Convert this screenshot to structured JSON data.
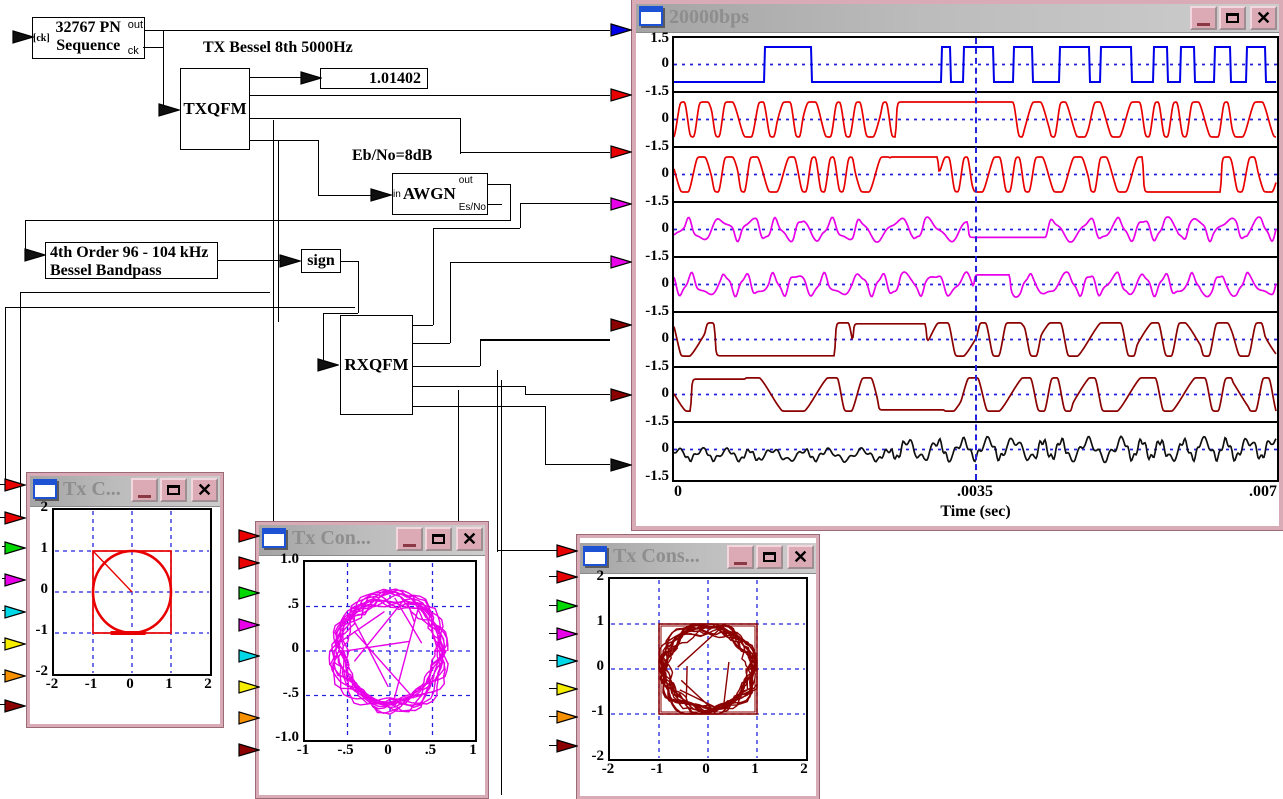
{
  "diagram": {
    "pn_block": {
      "title_line1": "32767 PN",
      "title_line2": "Sequence",
      "port_out": "out",
      "port_ck": "ck",
      "external_input_label": "[ck]"
    },
    "tx_filter_label": "TX Bessel 8th 5000Hz",
    "txqfm_label": "TXQFM",
    "final_value": "1.01402",
    "ebno_label": "Eb/No=8dB",
    "awgn_block": {
      "port_in": "in",
      "title": "AWGN",
      "port_out": "out",
      "port_esno": "Es/No"
    },
    "bessel_block": {
      "line1": "4th Order 96 - 104 kHz",
      "line2": "Bessel Bandpass"
    },
    "sign_label": "sign",
    "rxqfm_label": "RXQFM"
  },
  "colors": {
    "block_fill": "#00E4EE",
    "window_frame": "#D9ABB6",
    "titlebar_text": "#8E8E8E",
    "grid_blue": "#2222DD",
    "connector": {
      "red": "#E80000",
      "green": "#00D800",
      "magenta": "#E800E8",
      "cyan": "#00D8E8",
      "yellow": "#F6EE00",
      "orange": "#F69000",
      "darkred": "#8B0000",
      "blue": "#0000E8",
      "black": "#101010"
    }
  },
  "window_buttons": {
    "close_glyph": "✕"
  },
  "scope_window": {
    "title": "20000bps",
    "x_axis": {
      "label": "Time (sec)",
      "ticks": [
        "0",
        ".0035",
        ".007"
      ]
    },
    "y_axis": {
      "top": "1.5",
      "zero": "0",
      "bottom": "-1.5"
    },
    "traces": [
      {
        "color_name": "blue",
        "kind": "digital",
        "seed": 7
      },
      {
        "color_name": "red",
        "kind": "fm",
        "seed": 11
      },
      {
        "color_name": "red",
        "kind": "fm",
        "seed": 23
      },
      {
        "color_name": "magenta",
        "kind": "fm",
        "seed": 31
      },
      {
        "color_name": "magenta",
        "kind": "fm",
        "seed": 43
      },
      {
        "color_name": "darkred",
        "kind": "fm",
        "seed": 53
      },
      {
        "color_name": "darkred",
        "kind": "fm",
        "seed": 61
      },
      {
        "color_name": "black",
        "kind": "noisy",
        "seed": 71
      }
    ]
  },
  "constellation_windows": [
    {
      "title": "Tx C...",
      "color_name": "red",
      "y_ticks": [
        "2",
        "1",
        "0",
        "-1",
        "-2"
      ],
      "y_tick_values": [
        2,
        1,
        0,
        -1,
        -2
      ],
      "x_ticks": [
        "-2",
        "-1",
        "0",
        "1",
        "2"
      ],
      "x_tick_values": [
        -2,
        -1,
        0,
        1,
        2
      ],
      "grid_values": [
        -1,
        0,
        1
      ],
      "range": 2,
      "kind": "circle-square"
    },
    {
      "title": "Tx Con...",
      "color_name": "magenta",
      "y_ticks": [
        "1.0",
        ".5",
        "0",
        "-.5",
        "-1.0"
      ],
      "y_tick_values": [
        1,
        0.5,
        0,
        -0.5,
        -1
      ],
      "x_ticks": [
        "-1",
        "-.5",
        "0",
        ".5",
        "1"
      ],
      "x_tick_values": [
        -1,
        -0.5,
        0,
        0.5,
        1
      ],
      "grid_values": [
        -0.5,
        0,
        0.5
      ],
      "range": 1,
      "kind": "scribble"
    },
    {
      "title": "Tx Cons...",
      "color_name": "darkred",
      "y_ticks": [
        "2",
        "1",
        "0",
        "-1",
        "-2"
      ],
      "y_tick_values": [
        2,
        1,
        0,
        -1,
        -2
      ],
      "x_ticks": [
        "-2",
        "-1",
        "0",
        "1",
        "2"
      ],
      "x_tick_values": [
        -2,
        -1,
        0,
        1,
        2
      ],
      "grid_values": [
        -1,
        0,
        1
      ],
      "range": 2,
      "kind": "scribble-square"
    }
  ]
}
